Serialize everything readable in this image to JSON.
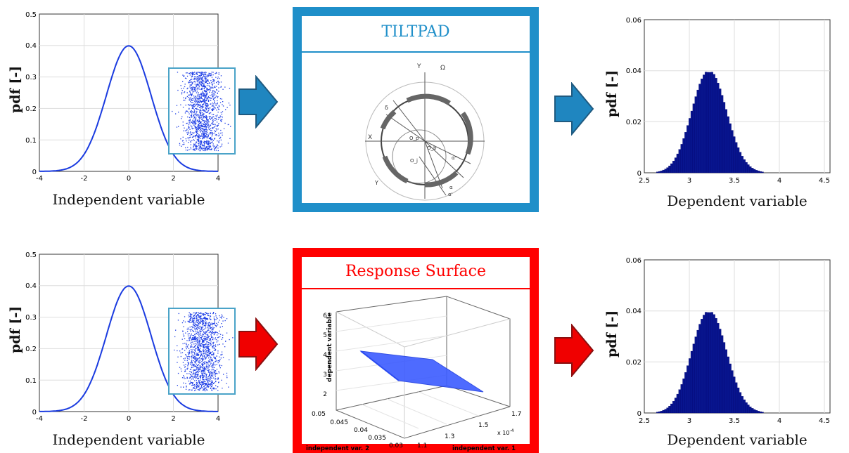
{
  "rows": [
    {
      "input": {
        "ylabel": "pdf [-]",
        "xlabel": "Independent variable",
        "x_ticks": [
          "-4",
          "-2",
          "0",
          "2",
          "4"
        ],
        "y_ticks": [
          "0",
          "0.1",
          "0.2",
          "0.3",
          "0.4",
          "0.5"
        ]
      },
      "arrow_color": "#1f86c0",
      "model": {
        "title": "TILTPAD",
        "frame_color": "#1f8fc9",
        "title_color": "#1f8fc9",
        "diagram_labels": [
          "Y",
          "Ω",
          "X",
          "δ",
          "O_p",
          "O_b",
          "O_j",
          "α''",
          "Y",
          "α",
          "α'"
        ]
      },
      "output": {
        "ylabel": "pdf [-]",
        "xlabel": "Dependent variable",
        "x_ticks": [
          "2.5",
          "3",
          "3.5",
          "4",
          "4.5"
        ],
        "y_ticks": [
          "0",
          "0.02",
          "0.04",
          "0.06"
        ]
      }
    },
    {
      "input": {
        "ylabel": "pdf [-]",
        "xlabel": "Independent variable",
        "x_ticks": [
          "-4",
          "-2",
          "0",
          "2",
          "4"
        ],
        "y_ticks": [
          "0",
          "0.1",
          "0.2",
          "0.3",
          "0.4",
          "0.5"
        ]
      },
      "arrow_color": "#f00000",
      "model": {
        "title": "Response Surface",
        "frame_color": "#ff0000",
        "title_color": "#ff0000",
        "surface": {
          "zlabel": "dependent variable",
          "xlabel": "independent var. 1",
          "ylabel": "independent var. 2",
          "z_ticks": [
            "2",
            "3",
            "4",
            "5",
            "6"
          ],
          "x_ticks": [
            "1.1",
            "1.3",
            "1.5",
            "1.7"
          ],
          "x_exponent": "x 10",
          "x_exponent_power": "-4",
          "y_ticks": [
            "0.03",
            "0.035",
            "0.04",
            "0.045",
            "0.05"
          ]
        }
      },
      "output": {
        "ylabel": "pdf [-]",
        "xlabel": "Dependent variable",
        "x_ticks": [
          "2.5",
          "3",
          "3.5",
          "4",
          "4.5"
        ],
        "y_ticks": [
          "0",
          "0.02",
          "0.04",
          "0.06"
        ]
      }
    }
  ]
}
